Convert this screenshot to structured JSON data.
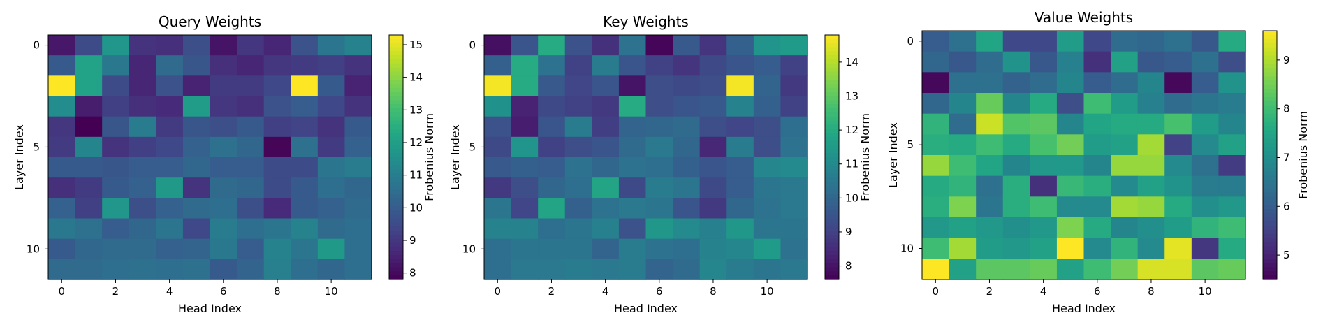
{
  "chart_data": [
    {
      "type": "heatmap",
      "title": "Query Weights",
      "xlabel": "Head Index",
      "ylabel": "Layer Index",
      "x_ticks": [
        0,
        2,
        4,
        6,
        8,
        10
      ],
      "y_ticks": [
        0,
        5,
        10
      ],
      "colorbar": {
        "label": "Frobenius Norm",
        "min": 7.8,
        "max": 15.3,
        "ticks": [
          8,
          9,
          10,
          11,
          12,
          13,
          14,
          15
        ]
      },
      "colormap": "viridis",
      "values": [
        [
          8.3,
          9.5,
          11.7,
          8.9,
          8.8,
          9.6,
          8.2,
          9.0,
          8.6,
          9.7,
          10.7,
          11.1
        ],
        [
          9.9,
          12.1,
          10.8,
          8.6,
          10.4,
          9.8,
          8.8,
          8.6,
          9.0,
          9.1,
          9.2,
          8.9
        ],
        [
          15.3,
          12.1,
          9.5,
          8.6,
          9.7,
          8.5,
          9.1,
          9.1,
          9.4,
          15.3,
          9.9,
          8.5
        ],
        [
          11.4,
          8.4,
          9.2,
          8.8,
          8.7,
          11.9,
          9.0,
          8.8,
          9.7,
          10.0,
          9.4,
          8.9
        ],
        [
          9.0,
          7.8,
          9.8,
          10.9,
          9.1,
          9.8,
          9.6,
          9.9,
          9.2,
          9.3,
          8.9,
          9.9
        ],
        [
          9.1,
          11.2,
          8.9,
          9.2,
          9.4,
          10.1,
          10.6,
          10.3,
          7.9,
          10.6,
          9.1,
          10.1
        ],
        [
          9.9,
          9.9,
          9.8,
          10.0,
          10.0,
          10.3,
          10.0,
          10.0,
          9.5,
          9.5,
          10.7,
          10.9
        ],
        [
          8.8,
          9.1,
          9.9,
          10.1,
          11.8,
          8.9,
          10.4,
          10.3,
          9.5,
          9.9,
          10.5,
          10.3
        ],
        [
          10.1,
          9.2,
          11.7,
          9.6,
          10.1,
          10.4,
          10.5,
          9.6,
          8.7,
          9.9,
          10.1,
          10.4
        ],
        [
          10.8,
          10.6,
          10.0,
          10.3,
          10.7,
          9.4,
          10.9,
          10.5,
          10.7,
          11.1,
          10.4,
          10.5
        ],
        [
          9.9,
          10.3,
          10.4,
          10.4,
          10.1,
          10.2,
          10.8,
          10.0,
          11.1,
          10.7,
          11.8,
          10.5
        ],
        [
          10.4,
          10.4,
          10.5,
          10.6,
          10.5,
          10.6,
          9.9,
          10.2,
          11.0,
          10.5,
          10.3,
          10.5
        ]
      ]
    },
    {
      "type": "heatmap",
      "title": "Key Weights",
      "xlabel": "Head Index",
      "ylabel": "Layer Index",
      "x_ticks": [
        0,
        2,
        4,
        6,
        8,
        10
      ],
      "y_ticks": [
        0,
        5,
        10
      ],
      "colorbar": {
        "label": "Frobenius Norm",
        "min": 7.6,
        "max": 14.8,
        "ticks": [
          8,
          9,
          10,
          11,
          12,
          13,
          14
        ]
      },
      "colormap": "viridis",
      "values": [
        [
          7.9,
          9.5,
          12.0,
          9.4,
          8.6,
          10.3,
          7.7,
          9.6,
          8.7,
          9.8,
          11.3,
          11.5
        ],
        [
          9.8,
          12.0,
          10.3,
          9.0,
          10.6,
          9.5,
          9.0,
          8.7,
          9.2,
          9.5,
          9.7,
          9.0
        ],
        [
          14.7,
          12.0,
          9.6,
          9.1,
          9.5,
          8.0,
          9.3,
          9.2,
          9.3,
          14.7,
          9.9,
          8.8
        ],
        [
          11.2,
          8.3,
          9.2,
          9.0,
          8.8,
          12.0,
          9.3,
          9.5,
          9.6,
          10.8,
          9.8,
          9.0
        ],
        [
          9.4,
          8.2,
          9.5,
          10.6,
          8.9,
          9.9,
          10.0,
          10.1,
          9.3,
          9.1,
          9.3,
          10.2
        ],
        [
          9.2,
          11.3,
          9.0,
          9.3,
          9.5,
          10.1,
          10.5,
          10.0,
          8.4,
          10.6,
          9.3,
          10.3
        ],
        [
          9.6,
          9.8,
          9.7,
          10.3,
          10.0,
          10.3,
          10.2,
          9.8,
          9.5,
          9.7,
          10.9,
          11.0
        ],
        [
          8.8,
          9.3,
          10.0,
          10.2,
          11.8,
          9.2,
          10.6,
          10.4,
          9.2,
          9.7,
          10.4,
          10.5
        ],
        [
          10.4,
          9.1,
          11.8,
          9.8,
          10.3,
          10.5,
          10.4,
          9.5,
          8.8,
          10.0,
          10.3,
          10.5
        ],
        [
          10.8,
          10.8,
          10.2,
          10.4,
          10.7,
          9.4,
          11.4,
          11.0,
          10.7,
          11.4,
          10.4,
          10.4
        ],
        [
          10.2,
          10.4,
          10.4,
          10.4,
          9.9,
          10.6,
          10.3,
          10.2,
          10.8,
          10.9,
          11.5,
          10.3
        ],
        [
          10.2,
          10.5,
          10.5,
          10.6,
          10.5,
          10.6,
          9.9,
          10.1,
          10.9,
          10.6,
          10.4,
          10.5
        ]
      ]
    },
    {
      "type": "heatmap",
      "title": "Value Weights",
      "xlabel": "Head Index",
      "ylabel": "Layer Index",
      "x_ticks": [
        0,
        2,
        4,
        6,
        8,
        10
      ],
      "y_ticks": [
        0,
        5,
        10
      ],
      "colorbar": {
        "label": "Frobenius Norm",
        "min": 4.5,
        "max": 9.6,
        "ticks": [
          5,
          6,
          7,
          8,
          9
        ]
      },
      "colormap": "viridis",
      "values": [
        [
          6.0,
          6.4,
          7.5,
          5.6,
          5.6,
          7.3,
          5.6,
          6.3,
          6.2,
          6.4,
          5.9,
          7.6
        ],
        [
          6.2,
          5.9,
          6.3,
          7.1,
          5.9,
          6.7,
          5.2,
          7.4,
          5.9,
          6.0,
          6.4,
          5.7
        ],
        [
          4.6,
          6.4,
          6.4,
          6.1,
          6.3,
          6.8,
          6.0,
          6.3,
          6.8,
          4.6,
          6.0,
          7.1
        ],
        [
          6.2,
          6.8,
          8.4,
          6.8,
          7.6,
          5.7,
          8.0,
          7.3,
          6.7,
          6.3,
          6.5,
          6.6
        ],
        [
          7.8,
          6.3,
          9.2,
          8.2,
          8.3,
          6.8,
          7.5,
          7.6,
          7.6,
          8.1,
          7.3,
          6.8
        ],
        [
          7.7,
          7.6,
          8.0,
          7.6,
          8.1,
          8.5,
          7.3,
          7.4,
          8.9,
          5.5,
          6.9,
          7.4
        ],
        [
          8.8,
          8.0,
          7.5,
          6.8,
          7.2,
          7.2,
          6.8,
          8.8,
          8.8,
          6.9,
          6.4,
          5.4
        ],
        [
          7.6,
          7.8,
          6.4,
          7.7,
          5.2,
          7.9,
          7.7,
          6.9,
          7.4,
          7.1,
          6.6,
          6.6
        ],
        [
          7.7,
          8.6,
          6.5,
          7.7,
          8.0,
          6.9,
          6.9,
          8.9,
          8.8,
          7.6,
          7.0,
          7.2
        ],
        [
          7.2,
          7.4,
          7.2,
          7.0,
          7.2,
          8.6,
          7.6,
          6.8,
          7.0,
          7.3,
          7.8,
          8.0
        ],
        [
          8.0,
          8.9,
          7.3,
          7.2,
          7.4,
          9.6,
          6.9,
          7.8,
          6.9,
          9.4,
          5.3,
          7.6
        ],
        [
          9.6,
          7.4,
          8.3,
          8.3,
          8.4,
          7.4,
          8.0,
          8.5,
          9.3,
          9.3,
          8.3,
          8.4
        ]
      ]
    }
  ]
}
